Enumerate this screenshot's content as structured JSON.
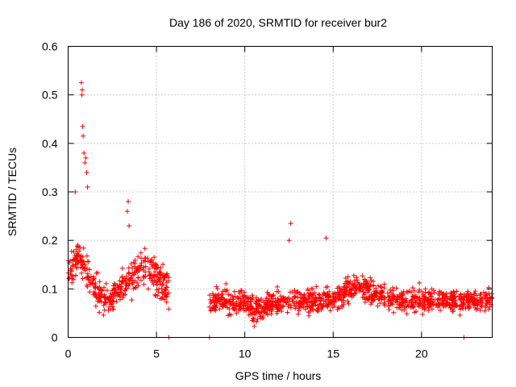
{
  "chart_data": {
    "type": "scatter",
    "title": "Day 186 of 2020, SRMTID for receiver bur2",
    "xlabel": "GPS time / hours",
    "ylabel": "SRMTID / TECUs",
    "xlim": [
      0,
      24
    ],
    "ylim": [
      0,
      0.6
    ],
    "x_ticks": [
      0,
      5,
      10,
      15,
      20
    ],
    "y_ticks": [
      0,
      0.1,
      0.2,
      0.3,
      0.4,
      0.5,
      0.6
    ],
    "x_tick_labels": [
      "0",
      "5",
      "10",
      "15",
      "20"
    ],
    "y_tick_labels": [
      "0",
      "0.1",
      "0.2",
      "0.3",
      "0.4",
      "0.5",
      "0.6"
    ],
    "grid": true,
    "marker": "+",
    "series_color": "#ff0000",
    "segments": [
      {
        "x_start": 0.0,
        "x_end": 5.7,
        "baseline": 0.105,
        "spread": 0.05
      },
      {
        "x_start": 8.0,
        "x_end": 24.0,
        "baseline": 0.075,
        "spread": 0.035
      }
    ],
    "notable_points": [
      {
        "x": 0.75,
        "y": 0.525
      },
      {
        "x": 0.8,
        "y": 0.51
      },
      {
        "x": 0.78,
        "y": 0.5
      },
      {
        "x": 0.82,
        "y": 0.435
      },
      {
        "x": 0.85,
        "y": 0.415
      },
      {
        "x": 0.9,
        "y": 0.38
      },
      {
        "x": 1.0,
        "y": 0.37
      },
      {
        "x": 1.05,
        "y": 0.34
      },
      {
        "x": 1.1,
        "y": 0.31
      },
      {
        "x": 0.95,
        "y": 0.36
      },
      {
        "x": 0.4,
        "y": 0.3
      },
      {
        "x": 3.4,
        "y": 0.28
      },
      {
        "x": 3.35,
        "y": 0.26
      },
      {
        "x": 3.45,
        "y": 0.23
      },
      {
        "x": 12.6,
        "y": 0.235
      },
      {
        "x": 12.5,
        "y": 0.2
      },
      {
        "x": 14.6,
        "y": 0.205
      },
      {
        "x": 5.7,
        "y": 0.0
      },
      {
        "x": 8.0,
        "y": 0.0
      },
      {
        "x": 22.4,
        "y": 0.0
      }
    ]
  }
}
